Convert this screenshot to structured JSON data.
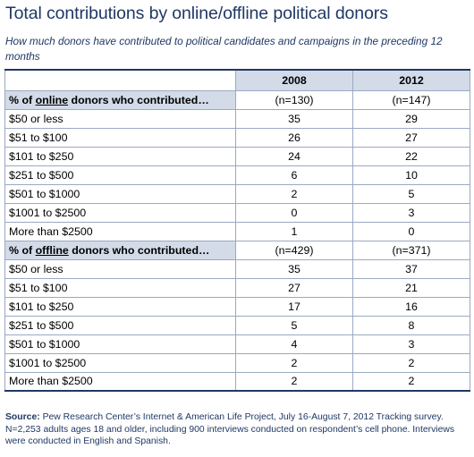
{
  "title": "Total contributions by online/offline political donors",
  "subtitle": "How much donors have contributed to political candidates and campaigns in the preceding 12 months",
  "source": {
    "label": "Source:",
    "text": "Pew Research Center’s Internet & American Life Project, July 16-August 7, 2012 Tracking survey. N=2,253 adults ages 18 and older, including 900 interviews conducted on respondent’s cell phone.  Interviews were conducted in English and Spanish."
  },
  "chart_data": {
    "type": "table",
    "columns": [
      "2008",
      "2012"
    ],
    "sections": [
      {
        "label_prefix": "% of ",
        "label_keyword": "online",
        "label_suffix": " donors who contributed…",
        "n": [
          "(n=130)",
          "(n=147)"
        ],
        "rows": [
          {
            "label": "$50 or less",
            "values": [
              35,
              29
            ]
          },
          {
            "label": "$51 to $100",
            "values": [
              26,
              27
            ]
          },
          {
            "label": "$101 to $250",
            "values": [
              24,
              22
            ]
          },
          {
            "label": "$251 to $500",
            "values": [
              6,
              10
            ]
          },
          {
            "label": "$501 to $1000",
            "values": [
              2,
              5
            ]
          },
          {
            "label": "$1001 to $2500",
            "values": [
              0,
              3
            ]
          },
          {
            "label": "More than $2500",
            "values": [
              1,
              0
            ]
          }
        ]
      },
      {
        "label_prefix": "% of ",
        "label_keyword": "offline",
        "label_suffix": " donors who contributed…",
        "n": [
          "(n=429)",
          "(n=371)"
        ],
        "rows": [
          {
            "label": "$50 or less",
            "values": [
              35,
              37
            ]
          },
          {
            "label": "$51 to $100",
            "values": [
              27,
              21
            ]
          },
          {
            "label": "$101 to $250",
            "values": [
              17,
              16
            ]
          },
          {
            "label": "$251 to $500",
            "values": [
              5,
              8
            ]
          },
          {
            "label": "$501 to $1000",
            "values": [
              4,
              3
            ]
          },
          {
            "label": "$1001 to $2500",
            "values": [
              2,
              2
            ]
          },
          {
            "label": "More than $2500",
            "values": [
              2,
              2
            ]
          }
        ]
      }
    ]
  }
}
